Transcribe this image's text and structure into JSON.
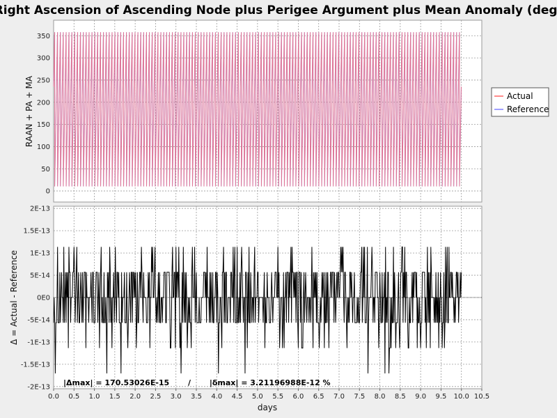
{
  "chart_data": [
    {
      "type": "line",
      "title": "Right Ascension of Ascending Node plus Perigee Argument plus Mean Anomaly (deg)",
      "xlabel": "",
      "ylabel": "RAAN + PA + MA",
      "xlim": [
        0.0,
        10.5
      ],
      "ylim": [
        -25,
        385
      ],
      "x_ticks": [
        "0.0",
        "0.5",
        "1.0",
        "1.5",
        "2.0",
        "2.5",
        "3.0",
        "3.5",
        "4.0",
        "4.5",
        "5.0",
        "5.5",
        "6.0",
        "6.5",
        "7.0",
        "7.5",
        "8.0",
        "8.5",
        "9.0",
        "9.5",
        "10.0",
        "10.5"
      ],
      "y_ticks": [
        "0",
        "50",
        "100",
        "150",
        "200",
        "250",
        "300",
        "350"
      ],
      "grid": true,
      "legend_position": "right",
      "series_description": "sawtooth wrapping 0-360 deg, ~14.2 revolutions per day, x from 0.0 to 10.0 days",
      "sample_period_days": 0.0704,
      "phase_days": 0.046,
      "series": [
        {
          "name": "Actual",
          "color": "#ff6666"
        },
        {
          "name": "Reference",
          "color": "#8080ff"
        }
      ]
    },
    {
      "type": "line",
      "xlabel": "days",
      "ylabel": "Δ = Actual - Reference",
      "xlim": [
        0.0,
        10.5
      ],
      "ylim": [
        -2.05e-13,
        2.05e-13
      ],
      "x_ticks": [
        "0.0",
        "0.5",
        "1.0",
        "1.5",
        "2.0",
        "2.5",
        "3.0",
        "3.5",
        "4.0",
        "4.5",
        "5.0",
        "5.5",
        "6.0",
        "6.5",
        "7.0",
        "7.5",
        "8.0",
        "8.5",
        "9.0",
        "9.5",
        "10.0",
        "10.5"
      ],
      "y_tick_values": [
        2e-13,
        1.5e-13,
        1e-13,
        5e-14,
        0,
        -5e-14,
        -1e-13,
        -1.5e-13,
        -2e-13
      ],
      "y_ticks": [
        "2E-13",
        "1.5E-13",
        "1E-13",
        "5E-14",
        "0E0",
        "-5E-14",
        "-1E-13",
        "-1.5E-13",
        "-2E-13"
      ],
      "grid": true,
      "zero_line_dotted": true,
      "series": [
        {
          "color": "#000000",
          "amplitude_levels": [
            5.68e-14,
            1.137e-13,
            1.705e-13
          ],
          "x_range": [
            0.0,
            10.0
          ]
        }
      ],
      "annotation": "|Δmax| = 170.53026E-15       /       |δmax| = 3.21196988E-12 %"
    }
  ],
  "legend": {
    "items": [
      {
        "label": "Actual",
        "color": "#ff6666"
      },
      {
        "label": "Reference",
        "color": "#8080ff"
      }
    ]
  },
  "colors": {
    "background": "#eeeeee",
    "plot_background": "#ffffff",
    "grid": "#9a9a9a",
    "axis": "#888888"
  }
}
